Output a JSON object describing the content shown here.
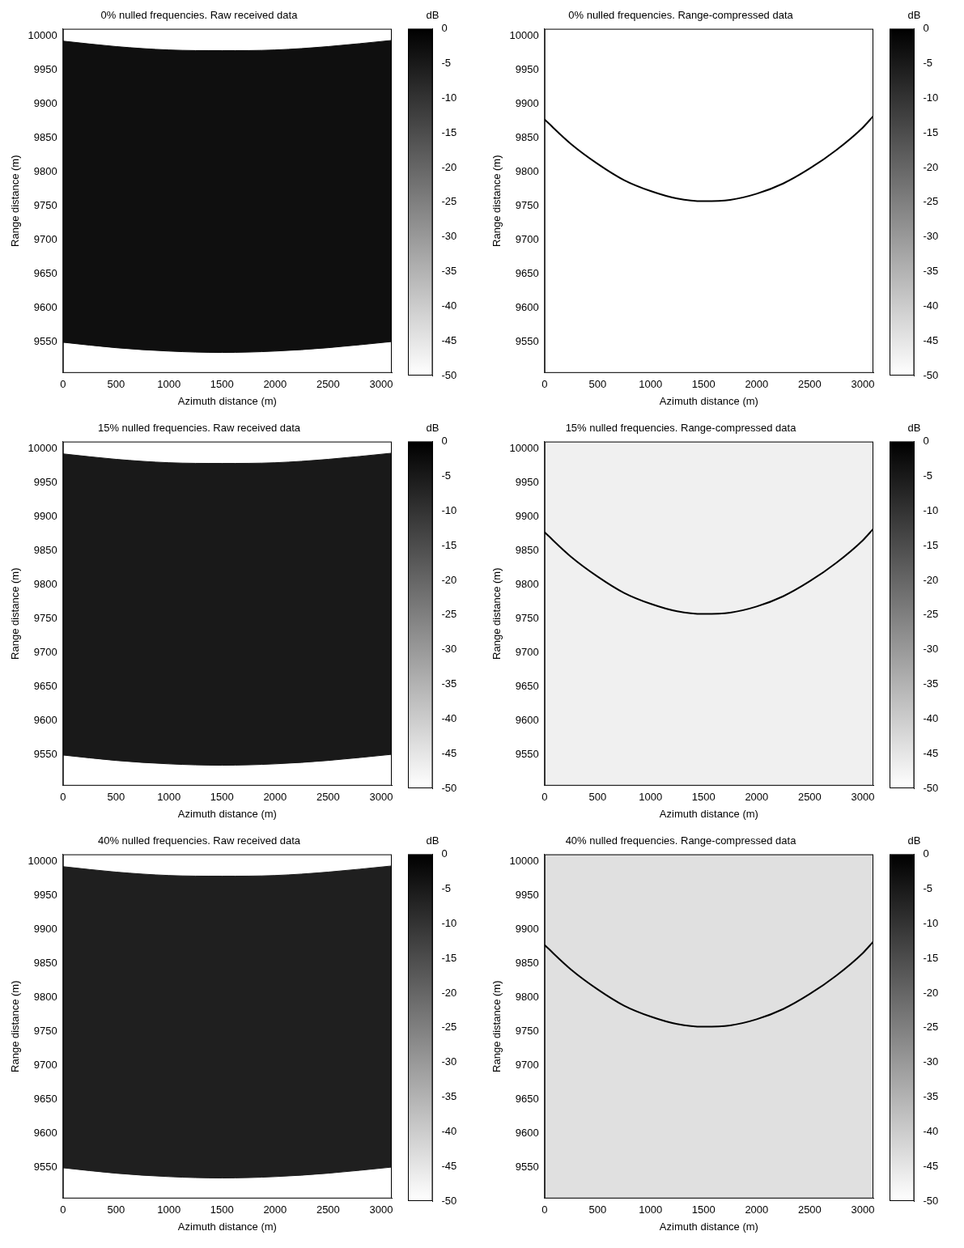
{
  "chart_data": [
    {
      "type": "area",
      "title": "0% nulled frequencies. Raw received data",
      "x_label": "Azimuth distance (m)",
      "y_label": "Range distance (m)",
      "x": [
        0,
        500,
        1000,
        1500,
        2000,
        2500,
        3100
      ],
      "series": [
        {
          "values": [
            9992,
            9984,
            9979,
            9978,
            9979,
            9984,
            9993
          ],
          "db": -3
        },
        {
          "values": [
            9550,
            9542,
            9537,
            9535,
            9537,
            9542,
            9551
          ],
          "db": -3
        }
      ],
      "background_db": -50,
      "xlim": [
        0,
        3100
      ],
      "ylim": [
        9505,
        10010
      ],
      "xticks": [
        0,
        500,
        1000,
        1500,
        2000,
        2500,
        3000
      ],
      "yticks": [
        9550,
        9600,
        9650,
        9700,
        9750,
        9800,
        9850,
        9900,
        9950,
        10000
      ],
      "grid": false,
      "colorbar": {
        "label": "dB",
        "lim": [
          -50,
          0
        ],
        "ticks": [
          0,
          -5,
          -10,
          -15,
          -20,
          -25,
          -30,
          -35,
          -40,
          -45,
          -50
        ]
      }
    },
    {
      "type": "line",
      "title": "0% nulled frequencies. Range-compressed data",
      "x_label": "Azimuth distance (m)",
      "y_label": "Range distance (m)",
      "x": [
        0,
        250,
        500,
        750,
        1000,
        1250,
        1500,
        1750,
        2000,
        2250,
        2500,
        2750,
        3000,
        3100
      ],
      "series": [
        {
          "values": [
            9877,
            9841,
            9812,
            9788,
            9772,
            9761,
            9757,
            9759,
            9768,
            9783,
            9805,
            9832,
            9865,
            9882
          ],
          "db": 0
        }
      ],
      "background_db": -50,
      "xlim": [
        0,
        3100
      ],
      "ylim": [
        9505,
        10010
      ],
      "xticks": [
        0,
        500,
        1000,
        1500,
        2000,
        2500,
        3000
      ],
      "yticks": [
        9550,
        9600,
        9650,
        9700,
        9750,
        9800,
        9850,
        9900,
        9950,
        10000
      ],
      "grid": false,
      "colorbar": {
        "label": "dB",
        "lim": [
          -50,
          0
        ],
        "ticks": [
          0,
          -5,
          -10,
          -15,
          -20,
          -25,
          -30,
          -35,
          -40,
          -45,
          -50
        ]
      }
    },
    {
      "type": "area",
      "title": "15% nulled frequencies. Raw received data",
      "x_label": "Azimuth distance (m)",
      "y_label": "Range distance (m)",
      "x": [
        0,
        500,
        1000,
        1500,
        2000,
        2500,
        3100
      ],
      "series": [
        {
          "values": [
            9992,
            9984,
            9979,
            9978,
            9979,
            9984,
            9993
          ],
          "db": -5
        },
        {
          "values": [
            9550,
            9542,
            9537,
            9535,
            9537,
            9542,
            9551
          ],
          "db": -5
        }
      ],
      "background_db": -50,
      "xlim": [
        0,
        3100
      ],
      "ylim": [
        9505,
        10010
      ],
      "xticks": [
        0,
        500,
        1000,
        1500,
        2000,
        2500,
        3000
      ],
      "yticks": [
        9550,
        9600,
        9650,
        9700,
        9750,
        9800,
        9850,
        9900,
        9950,
        10000
      ],
      "grid": false,
      "colorbar": {
        "label": "dB",
        "lim": [
          -50,
          0
        ],
        "ticks": [
          0,
          -5,
          -10,
          -15,
          -20,
          -25,
          -30,
          -35,
          -40,
          -45,
          -50
        ]
      }
    },
    {
      "type": "line",
      "title": "15% nulled frequencies. Range-compressed data",
      "x_label": "Azimuth distance (m)",
      "y_label": "Range distance (m)",
      "x": [
        0,
        250,
        500,
        750,
        1000,
        1250,
        1500,
        1750,
        2000,
        2250,
        2500,
        2750,
        3000,
        3100
      ],
      "series": [
        {
          "values": [
            9877,
            9841,
            9812,
            9788,
            9772,
            9761,
            9757,
            9759,
            9768,
            9783,
            9805,
            9832,
            9865,
            9882
          ],
          "db": 0
        }
      ],
      "background_db": -47,
      "xlim": [
        0,
        3100
      ],
      "ylim": [
        9505,
        10010
      ],
      "xticks": [
        0,
        500,
        1000,
        1500,
        2000,
        2500,
        3000
      ],
      "yticks": [
        9550,
        9600,
        9650,
        9700,
        9750,
        9800,
        9850,
        9900,
        9950,
        10000
      ],
      "grid": false,
      "colorbar": {
        "label": "dB",
        "lim": [
          -50,
          0
        ],
        "ticks": [
          0,
          -5,
          -10,
          -15,
          -20,
          -25,
          -30,
          -35,
          -40,
          -45,
          -50
        ]
      }
    },
    {
      "type": "area",
      "title": "40% nulled frequencies. Raw received data",
      "x_label": "Azimuth distance (m)",
      "y_label": "Range distance (m)",
      "x": [
        0,
        500,
        1000,
        1500,
        2000,
        2500,
        3100
      ],
      "series": [
        {
          "values": [
            9992,
            9984,
            9979,
            9978,
            9979,
            9984,
            9993
          ],
          "db": -6
        },
        {
          "values": [
            9550,
            9542,
            9537,
            9535,
            9537,
            9542,
            9551
          ],
          "db": -6
        }
      ],
      "background_db": -50,
      "xlim": [
        0,
        3100
      ],
      "ylim": [
        9505,
        10010
      ],
      "xticks": [
        0,
        500,
        1000,
        1500,
        2000,
        2500,
        3000
      ],
      "yticks": [
        9550,
        9600,
        9650,
        9700,
        9750,
        9800,
        9850,
        9900,
        9950,
        10000
      ],
      "grid": false,
      "colorbar": {
        "label": "dB",
        "lim": [
          -50,
          0
        ],
        "ticks": [
          0,
          -5,
          -10,
          -15,
          -20,
          -25,
          -30,
          -35,
          -40,
          -45,
          -50
        ]
      }
    },
    {
      "type": "line",
      "title": "40% nulled frequencies. Range-compressed data",
      "x_label": "Azimuth distance (m)",
      "y_label": "Range distance (m)",
      "x": [
        0,
        250,
        500,
        750,
        1000,
        1250,
        1500,
        1750,
        2000,
        2250,
        2500,
        2750,
        3000,
        3100
      ],
      "series": [
        {
          "values": [
            9877,
            9841,
            9812,
            9788,
            9772,
            9761,
            9757,
            9759,
            9768,
            9783,
            9805,
            9832,
            9865,
            9882
          ],
          "db": 0
        }
      ],
      "background_db": -44,
      "xlim": [
        0,
        3100
      ],
      "ylim": [
        9505,
        10010
      ],
      "xticks": [
        0,
        500,
        1000,
        1500,
        2000,
        2500,
        3000
      ],
      "yticks": [
        9550,
        9600,
        9650,
        9700,
        9750,
        9800,
        9850,
        9900,
        9950,
        10000
      ],
      "grid": false,
      "colorbar": {
        "label": "dB",
        "lim": [
          -50,
          0
        ],
        "ticks": [
          0,
          -5,
          -10,
          -15,
          -20,
          -25,
          -30,
          -35,
          -40,
          -45,
          -50
        ]
      }
    }
  ]
}
